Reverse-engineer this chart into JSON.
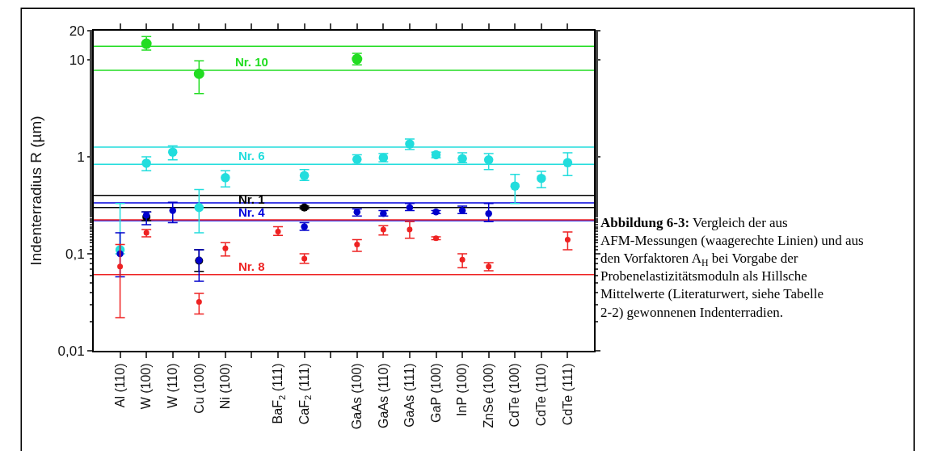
{
  "chart_data": {
    "type": "scatter",
    "ylabel": "Indenterradius R (µm)",
    "categories": [
      "Al (110)",
      "W (100)",
      "W (110)",
      "Cu (100)",
      "Ni (100)",
      null,
      "BaF$_{2}$ (111)",
      "CaF$_{2}$ (111)",
      null,
      "GaAs (100)",
      "GaAs (110)",
      "GaAs (111)",
      "GaP (100)",
      "InP (100)",
      "ZnSe (100)",
      "CdTe (100)",
      "CdTe (110)",
      "CdTe (111)"
    ],
    "log": "y",
    "ylim": [
      0.01,
      20
    ],
    "yticks": [
      {
        "value": 0.01,
        "label": "0,01"
      },
      {
        "value": 0.1,
        "label": "0,1"
      },
      1,
      10,
      20
    ],
    "grid": false,
    "marker": "circle",
    "series": [
      {
        "color": "#22dd22",
        "values": [
          null,
          14.7,
          null,
          7.2,
          null,
          null,
          null,
          null,
          null,
          10.2,
          null,
          null,
          null,
          null,
          null,
          null,
          null,
          null
        ],
        "errors": [
          null,
          [
            12.6,
            17.4
          ],
          null,
          [
            4.5,
            9.8
          ],
          null,
          null,
          null,
          null,
          null,
          [
            8.9,
            11.7
          ],
          null,
          null,
          null,
          null,
          null,
          null,
          null,
          null
        ]
      },
      {
        "color": "#22dddd",
        "values": [
          0.11,
          0.86,
          1.12,
          0.3,
          0.61,
          null,
          null,
          0.64,
          null,
          0.94,
          0.98,
          1.36,
          1.05,
          0.96,
          0.93,
          0.5,
          0.6,
          0.87
        ],
        "errors": [
          [
            0.1,
            0.33
          ],
          [
            0.72,
            1.0
          ],
          [
            0.93,
            1.3
          ],
          [
            0.165,
            0.46
          ],
          [
            0.49,
            0.72
          ],
          null,
          null,
          [
            0.57,
            0.74
          ],
          null,
          [
            0.84,
            1.05
          ],
          [
            0.89,
            1.08
          ],
          [
            1.19,
            1.53
          ],
          [
            0.98,
            1.12
          ],
          [
            0.87,
            1.1
          ],
          [
            0.74,
            1.08
          ],
          [
            0.33,
            0.66
          ],
          [
            0.48,
            0.71
          ],
          [
            0.64,
            1.1
          ]
        ]
      },
      {
        "color": "#000000",
        "values": [
          null,
          0.24,
          null,
          0.085,
          null,
          null,
          null,
          0.3,
          null,
          null,
          null,
          null,
          null,
          null,
          null,
          null,
          null,
          null
        ],
        "errors": [
          null,
          [
            0.22,
            0.27
          ],
          null,
          [
            0.066,
            0.11
          ],
          null,
          null,
          null,
          [
            0.29,
            0.31
          ],
          null,
          null,
          null,
          null,
          null,
          null,
          null,
          null,
          null,
          null
        ]
      },
      {
        "color": "#0000cc",
        "values": [
          0.1,
          0.25,
          0.28,
          0.086,
          null,
          null,
          null,
          0.19,
          null,
          0.27,
          0.26,
          0.3,
          0.27,
          0.28,
          0.26,
          null,
          null,
          null
        ],
        "errors": [
          [
            0.058,
            0.165
          ],
          [
            0.2,
            0.27
          ],
          [
            0.21,
            0.34
          ],
          [
            0.052,
            0.11
          ],
          null,
          null,
          null,
          [
            0.175,
            0.21
          ],
          null,
          [
            0.246,
            0.29
          ],
          [
            0.245,
            0.28
          ],
          [
            0.28,
            0.33
          ],
          [
            0.26,
            0.28
          ],
          [
            0.26,
            0.31
          ],
          [
            0.215,
            0.33
          ],
          null,
          null,
          null
        ]
      },
      {
        "color": "#ee2222",
        "values": [
          0.074,
          0.165,
          null,
          0.032,
          0.114,
          null,
          0.17,
          0.089,
          null,
          0.125,
          0.178,
          0.178,
          0.145,
          0.087,
          0.074,
          null,
          null,
          0.14
        ],
        "errors": [
          [
            0.022,
            0.125
          ],
          [
            0.15,
            0.178
          ],
          null,
          [
            0.024,
            0.039
          ],
          [
            0.095,
            0.13
          ],
          null,
          [
            0.155,
            0.19
          ],
          [
            0.08,
            0.1
          ],
          null,
          [
            0.106,
            0.14
          ],
          [
            0.156,
            0.195
          ],
          [
            0.145,
            0.215
          ],
          [
            0.14,
            0.15
          ],
          [
            0.072,
            0.1
          ],
          [
            0.067,
            0.081
          ],
          null,
          null,
          [
            0.11,
            0.168
          ]
        ]
      }
    ],
    "ref_lines": [
      {
        "axis": "y",
        "value": 13.8,
        "label": null,
        "color": "#22dd22"
      },
      {
        "axis": "y",
        "value": 7.8,
        "label": "Nr. 10",
        "color": "#22dd22"
      },
      {
        "axis": "y",
        "value": 1.26,
        "label": null,
        "color": "#22dddd"
      },
      {
        "axis": "y",
        "value": 0.84,
        "label": "Nr. 6",
        "color": "#22dddd"
      },
      {
        "axis": "y",
        "value": 0.4,
        "label": null,
        "color": "#000000"
      },
      {
        "axis": "y",
        "value": 0.3,
        "label": "Nr. 1",
        "color": "#000000"
      },
      {
        "axis": "y",
        "value": 0.335,
        "label": null,
        "color": "#0000dd"
      },
      {
        "axis": "y",
        "value": 0.22,
        "label": "Nr. 4",
        "color": "#0000dd"
      },
      {
        "axis": "y",
        "value": 0.224,
        "label": null,
        "color": "#ee2222"
      },
      {
        "axis": "y",
        "value": 0.061,
        "label": "Nr. 8",
        "color": "#ee2222"
      }
    ],
    "annotations": [
      "Abbildung 6-3:",
      "Vergleich der aus AFM-Messungen (waagerechte Linien) und aus den Vorfaktoren A$_{H}$ bei Vorgabe der Probenelastizitätsmoduln als Hillsche Mittelwerte (Literaturwert, siehe Tabelle 2-2) gewonnenen Indenterradien."
    ]
  }
}
